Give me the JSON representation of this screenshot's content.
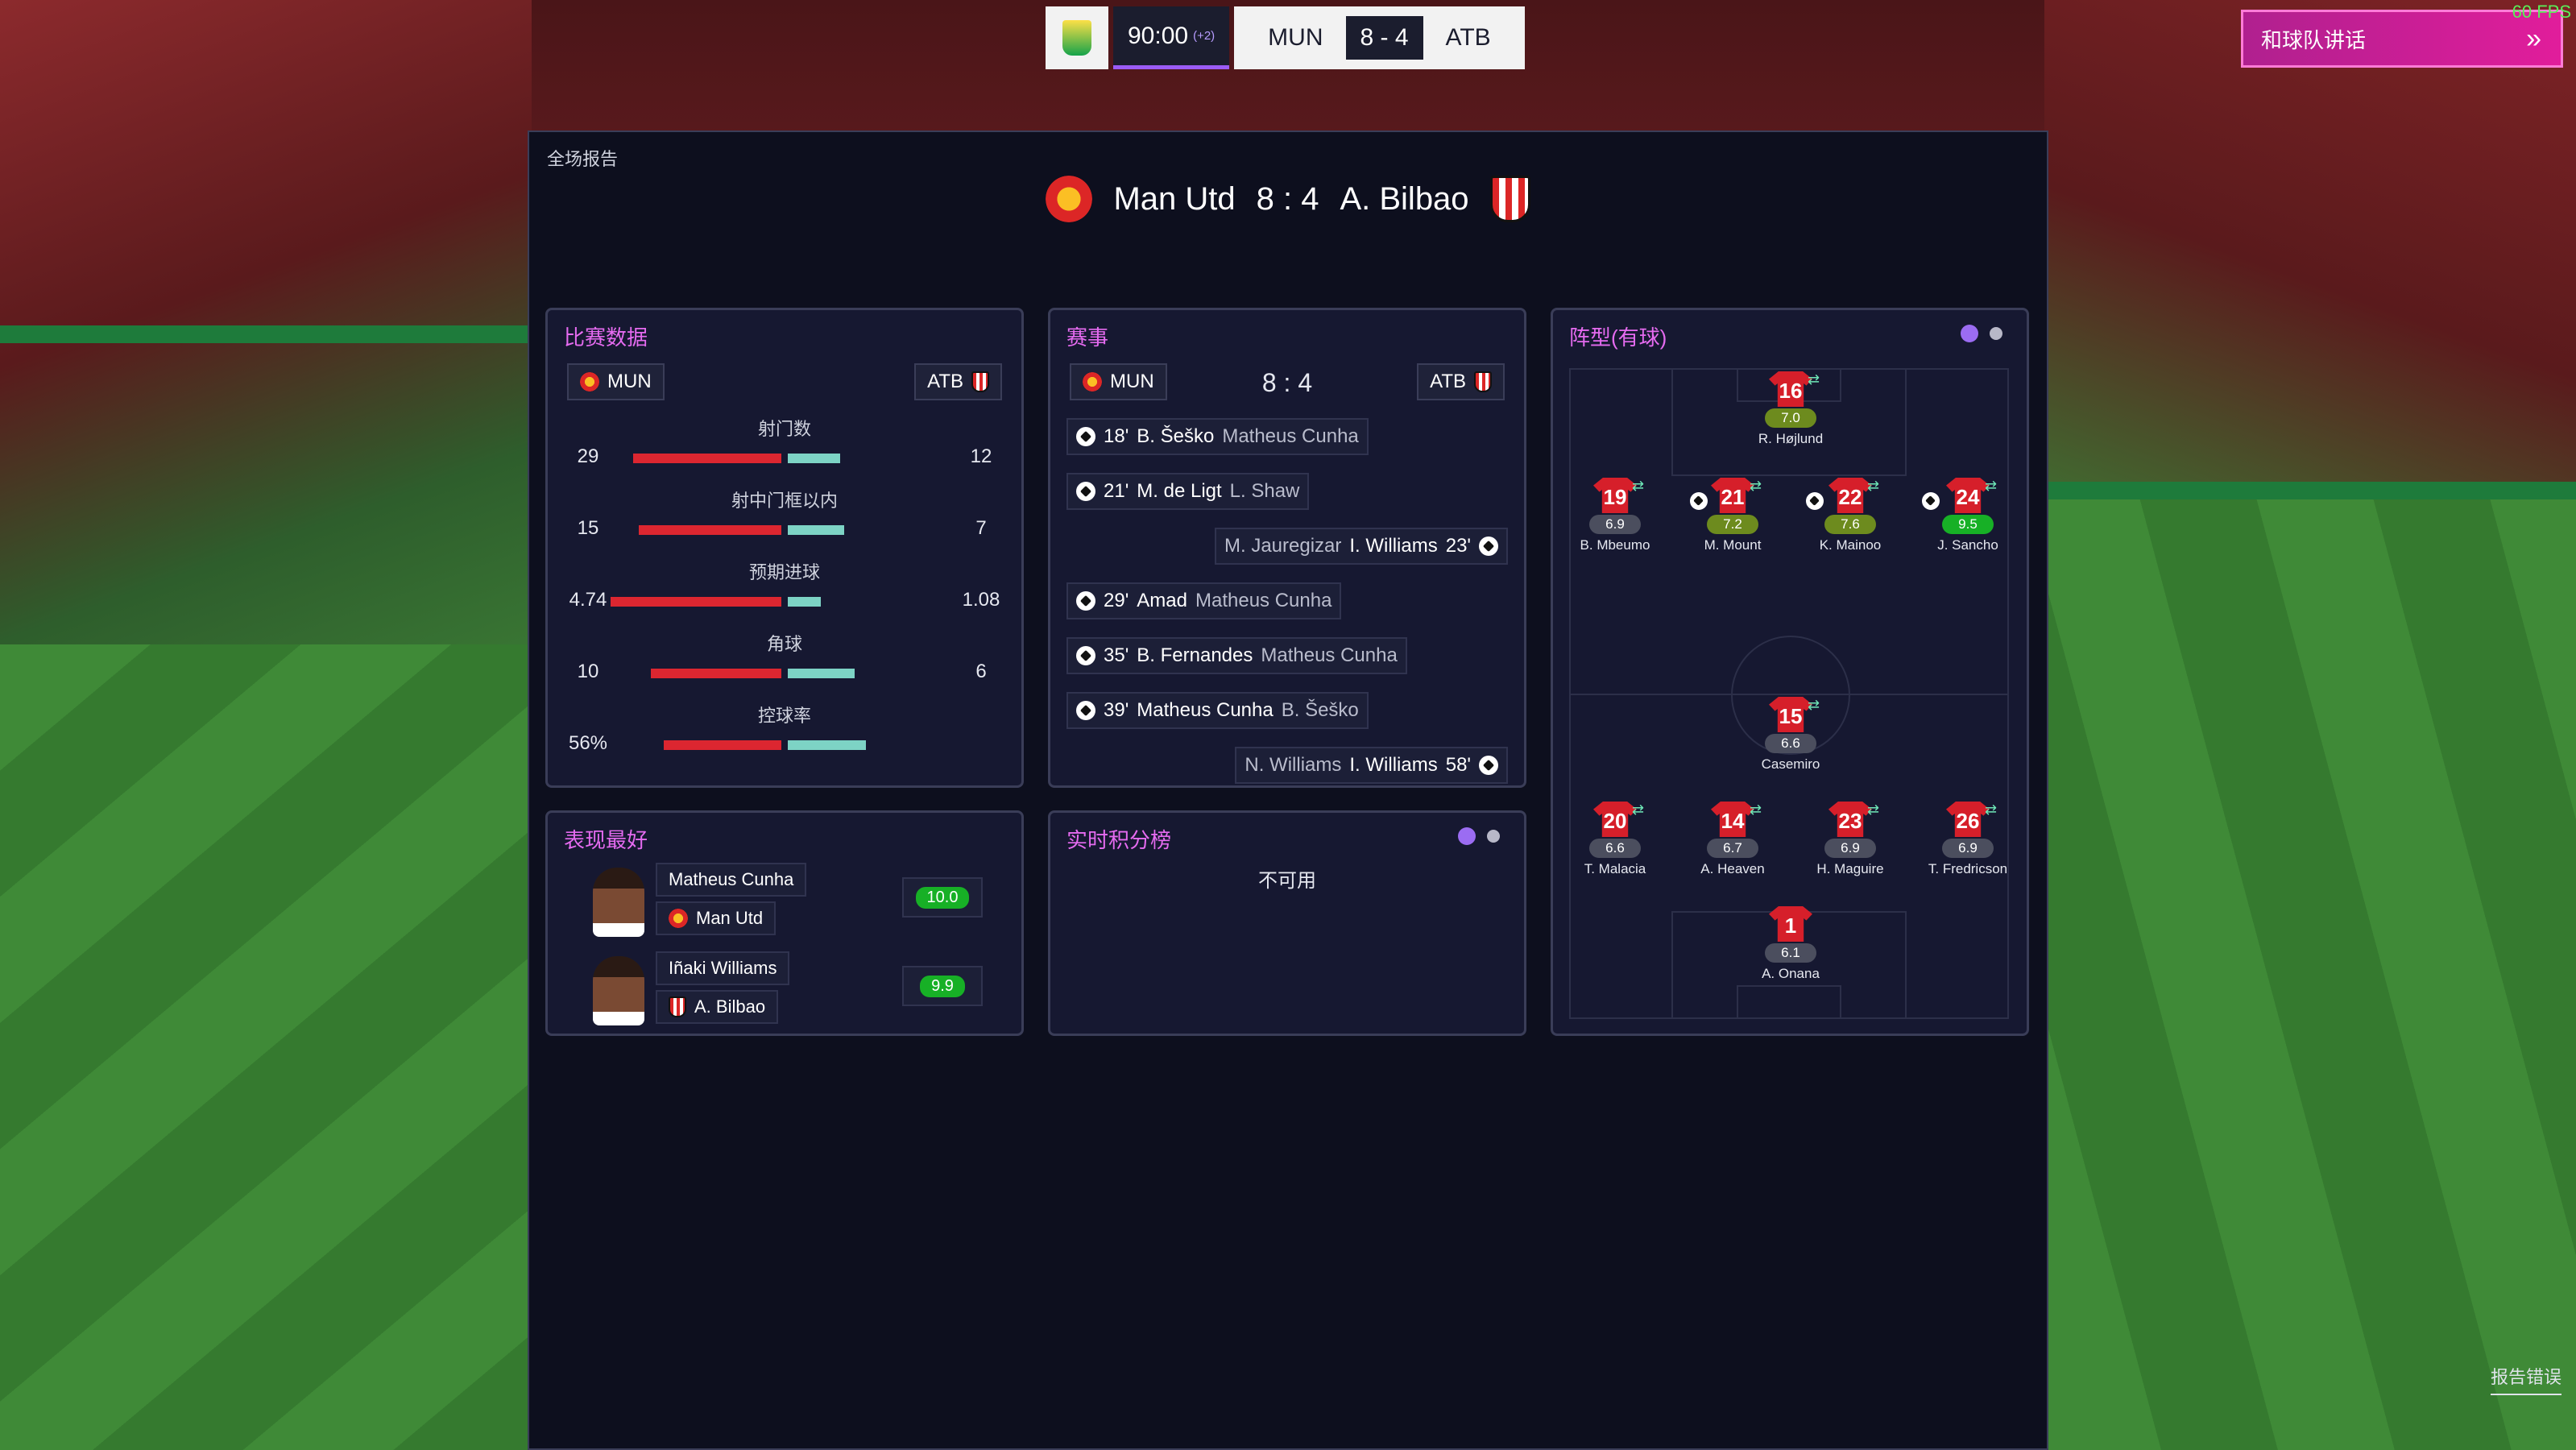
{
  "hud": {
    "clock": "90:00",
    "added_time": "(+2)",
    "home_abbr": "MUN",
    "score": "8 - 4",
    "away_abbr": "ATB",
    "talk_button": "和球队讲话",
    "fps": "60 FPS",
    "report_error": "报告错误"
  },
  "report": {
    "title": "全场报告",
    "home_team": "Man Utd",
    "score": "8 : 4",
    "away_team": "A. Bilbao"
  },
  "match_stats": {
    "title": "比赛数据",
    "home": "MUN",
    "away": "ATB",
    "rows": [
      {
        "label": "射门数",
        "home": "29",
        "away": "12",
        "home_frac": 0.707,
        "away_frac": 0.293
      },
      {
        "label": "射中门框以内",
        "home": "15",
        "away": "7",
        "home_frac": 0.682,
        "away_frac": 0.318
      },
      {
        "label": "预期进球",
        "home": "4.74",
        "away": "1.08",
        "home_frac": 0.814,
        "away_frac": 0.186
      },
      {
        "label": "角球",
        "home": "10",
        "away": "6",
        "home_frac": 0.625,
        "away_frac": 0.375
      },
      {
        "label": "控球率",
        "home": "56%",
        "away": "",
        "home_frac": 0.56,
        "away_frac": 0.44
      }
    ]
  },
  "events": {
    "title": "赛事",
    "home": "MUN",
    "score": "8 : 4",
    "away": "ATB",
    "items": [
      {
        "side": "home",
        "minute": "18'",
        "scorer": "B. Šeško",
        "assist": "Matheus Cunha"
      },
      {
        "side": "home",
        "minute": "21'",
        "scorer": "M. de Ligt",
        "assist": "L. Shaw"
      },
      {
        "side": "away",
        "minute": "23'",
        "scorer": "I. Williams",
        "assist": "M. Jauregizar"
      },
      {
        "side": "home",
        "minute": "29'",
        "scorer": "Amad",
        "assist": "Matheus Cunha"
      },
      {
        "side": "home",
        "minute": "35'",
        "scorer": "B. Fernandes",
        "assist": "Matheus Cunha"
      },
      {
        "side": "home",
        "minute": "39'",
        "scorer": "Matheus Cunha",
        "assist": "B. Šeško"
      },
      {
        "side": "away",
        "minute": "58'",
        "scorer": "I. Williams",
        "assist": "N. Williams"
      }
    ]
  },
  "best": {
    "title": "表现最好",
    "players": [
      {
        "name": "Matheus Cunha",
        "club": "Man Utd",
        "rating": "10.0"
      },
      {
        "name": "Iñaki Williams",
        "club": "A. Bilbao",
        "rating": "9.9"
      }
    ]
  },
  "live_table": {
    "title": "实时积分榜",
    "status": "不可用"
  },
  "formation": {
    "title": "阵型(有球)",
    "players": [
      {
        "num": "16",
        "rating": "7.0",
        "name": "R. Højlund",
        "tier": "olive"
      },
      {
        "num": "19",
        "rating": "6.9",
        "name": "B. Mbeumo",
        "tier": "grey"
      },
      {
        "num": "21",
        "rating": "7.2",
        "name": "M. Mount",
        "tier": "olive"
      },
      {
        "num": "22",
        "rating": "7.6",
        "name": "K. Mainoo",
        "tier": "olive"
      },
      {
        "num": "24",
        "rating": "9.5",
        "name": "J. Sancho",
        "tier": "green"
      },
      {
        "num": "15",
        "rating": "6.6",
        "name": "Casemiro",
        "tier": "grey"
      },
      {
        "num": "20",
        "rating": "6.6",
        "name": "T. Malacia",
        "tier": "grey"
      },
      {
        "num": "14",
        "rating": "6.7",
        "name": "A. Heaven",
        "tier": "grey"
      },
      {
        "num": "23",
        "rating": "6.9",
        "name": "H. Maguire",
        "tier": "grey"
      },
      {
        "num": "26",
        "rating": "6.9",
        "name": "T. Fredricson",
        "tier": "grey"
      },
      {
        "num": "1",
        "rating": "6.1",
        "name": "A. Onana",
        "tier": "grey"
      }
    ]
  },
  "colors": {
    "accent": "#e56bf0",
    "home_bar": "#dc2630",
    "away_bar": "#7dd3c5",
    "panel": "#161831"
  }
}
